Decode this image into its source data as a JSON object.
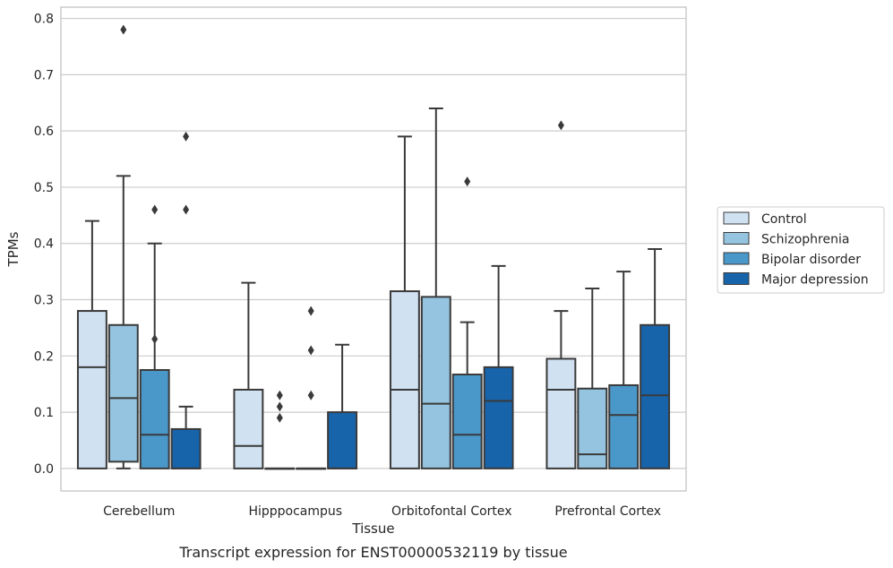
{
  "caption": "Transcript expression for ENST00000532119 by tissue",
  "chart_data": {
    "type": "boxplot",
    "xlabel": "Tissue",
    "ylabel": "TPMs",
    "ylim": [
      -0.04,
      0.82
    ],
    "yticks": [
      "0.0",
      "0.1",
      "0.2",
      "0.3",
      "0.4",
      "0.5",
      "0.6",
      "0.7",
      "0.8"
    ],
    "grid": "horizontal",
    "legend_position": "right",
    "categories": [
      "Cerebellum",
      "Hipppocampus",
      "Orbitofontal Cortex",
      "Prefrontal Cortex"
    ],
    "series": [
      {
        "name": "Control",
        "color": "#d0e1f2",
        "boxes": [
          {
            "min": 0.0,
            "q1": 0.0,
            "median": 0.18,
            "q3": 0.28,
            "max": 0.44,
            "outliers": []
          },
          {
            "min": 0.0,
            "q1": 0.0,
            "median": 0.04,
            "q3": 0.14,
            "max": 0.33,
            "outliers": []
          },
          {
            "min": 0.0,
            "q1": 0.0,
            "median": 0.14,
            "q3": 0.315,
            "max": 0.59,
            "outliers": []
          },
          {
            "min": 0.0,
            "q1": 0.0,
            "median": 0.14,
            "q3": 0.195,
            "max": 0.28,
            "outliers": [
              0.61
            ]
          }
        ]
      },
      {
        "name": "Schizophrenia",
        "color": "#94c4df",
        "boxes": [
          {
            "min": 0.0,
            "q1": 0.012,
            "median": 0.125,
            "q3": 0.255,
            "max": 0.52,
            "outliers": [
              0.78
            ]
          },
          {
            "min": 0.0,
            "q1": 0.0,
            "median": 0.0,
            "q3": 0.0,
            "max": 0.0,
            "outliers": [
              0.09,
              0.11,
              0.13
            ]
          },
          {
            "min": 0.0,
            "q1": 0.0,
            "median": 0.115,
            "q3": 0.305,
            "max": 0.64,
            "outliers": []
          },
          {
            "min": 0.0,
            "q1": 0.0,
            "median": 0.025,
            "q3": 0.142,
            "max": 0.32,
            "outliers": []
          }
        ]
      },
      {
        "name": "Bipolar disorder",
        "color": "#4a98c9",
        "boxes": [
          {
            "min": 0.0,
            "q1": 0.0,
            "median": 0.06,
            "q3": 0.175,
            "max": 0.4,
            "outliers": [
              0.23,
              0.46
            ]
          },
          {
            "min": 0.0,
            "q1": 0.0,
            "median": 0.0,
            "q3": 0.0,
            "max": 0.0,
            "outliers": [
              0.13,
              0.21,
              0.28
            ]
          },
          {
            "min": 0.0,
            "q1": 0.0,
            "median": 0.06,
            "q3": 0.167,
            "max": 0.26,
            "outliers": [
              0.51
            ]
          },
          {
            "min": 0.0,
            "q1": 0.0,
            "median": 0.095,
            "q3": 0.148,
            "max": 0.35,
            "outliers": []
          }
        ]
      },
      {
        "name": "Major depression",
        "color": "#1764ab",
        "boxes": [
          {
            "min": 0.0,
            "q1": 0.0,
            "median": 0.0,
            "q3": 0.07,
            "max": 0.11,
            "outliers": [
              0.46,
              0.59
            ]
          },
          {
            "min": 0.0,
            "q1": 0.0,
            "median": 0.0,
            "q3": 0.1,
            "max": 0.22,
            "outliers": []
          },
          {
            "min": 0.0,
            "q1": 0.0,
            "median": 0.12,
            "q3": 0.18,
            "max": 0.36,
            "outliers": []
          },
          {
            "min": 0.0,
            "q1": 0.0,
            "median": 0.13,
            "q3": 0.255,
            "max": 0.39,
            "outliers": []
          }
        ]
      }
    ]
  }
}
